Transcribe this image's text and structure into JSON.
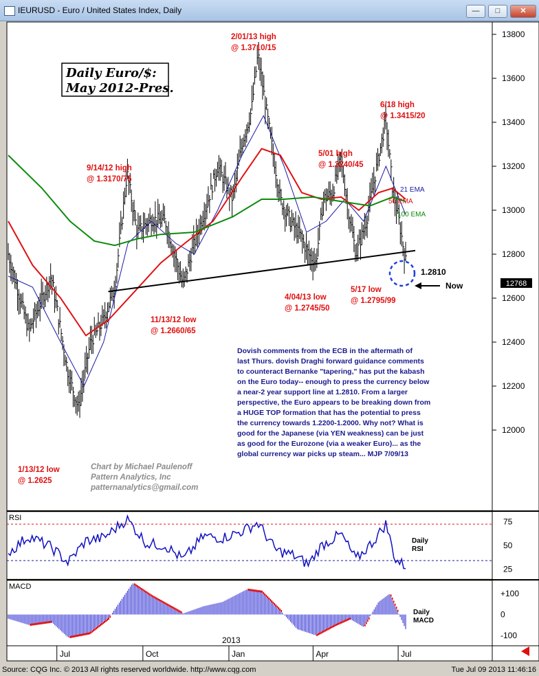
{
  "window": {
    "title": "IEURUSD - Euro / United States Index, Daily",
    "buttons": {
      "minimize": "—",
      "maximize": "□",
      "close": "✕"
    }
  },
  "colors": {
    "background": "#ffffff",
    "price": "#000000",
    "ema21": "#1a1aa6",
    "ema50": "#e01010",
    "ema100": "#0c8a0c",
    "annotation": "#e01010",
    "commentary": "#1a1a8c",
    "support": "#000000",
    "circle": "#1f3fdd",
    "rsi": "#1010c0",
    "macd": "#2020d0"
  },
  "chart_data": {
    "type": "line",
    "title": "Daily Euro/$:",
    "subtitle": "May 2012-Pres.",
    "xlabel": "",
    "ylabel": "",
    "x_ticks": [
      "Jul",
      "Oct",
      "Jan",
      "Apr",
      "Jul"
    ],
    "year_label": "2013",
    "ylim": [
      11600,
      13900
    ],
    "y_ticks": [
      "13800",
      "13600",
      "13400",
      "13200",
      "13000",
      "12800",
      "12600",
      "12400",
      "12200",
      "12000"
    ],
    "last_price_tag": "12768",
    "grid": false,
    "series": [
      {
        "name": "Price",
        "x": [
          "2012-05-10",
          "2012-06-01",
          "2012-06-25",
          "2012-07-13",
          "2012-07-24",
          "2012-08-06",
          "2012-08-20",
          "2012-09-01",
          "2012-09-14",
          "2012-09-25",
          "2012-10-10",
          "2012-10-25",
          "2012-11-13",
          "2012-11-25",
          "2012-12-10",
          "2012-12-20",
          "2013-01-05",
          "2013-01-15",
          "2013-01-25",
          "2013-02-01",
          "2013-02-12",
          "2013-02-25",
          "2013-03-08",
          "2013-03-19",
          "2013-03-27",
          "2013-04-04",
          "2013-04-12",
          "2013-04-22",
          "2013-05-01",
          "2013-05-08",
          "2013-05-17",
          "2013-05-28",
          "2013-06-06",
          "2013-06-18",
          "2013-06-25",
          "2013-07-02",
          "2013-07-09"
        ],
        "values": [
          12800,
          12450,
          12700,
          12260,
          12100,
          12400,
          12500,
          12650,
          13170,
          12900,
          12960,
          12950,
          12660,
          12850,
          13050,
          13200,
          13050,
          13300,
          13450,
          13710,
          13400,
          13050,
          12950,
          12880,
          12800,
          12760,
          13050,
          13080,
          13240,
          13020,
          12800,
          12950,
          13150,
          13415,
          13100,
          12950,
          12768
        ]
      },
      {
        "name": "21 EMA",
        "x": [
          "2012-05-10",
          "2012-06-05",
          "2012-07-05",
          "2012-07-30",
          "2012-08-20",
          "2012-09-15",
          "2012-10-10",
          "2012-11-05",
          "2012-11-25",
          "2012-12-20",
          "2013-01-15",
          "2013-02-07",
          "2013-03-01",
          "2013-03-25",
          "2013-04-15",
          "2013-05-05",
          "2013-05-25",
          "2013-06-18",
          "2013-07-09"
        ],
        "values": [
          12700,
          12650,
          12400,
          12200,
          12400,
          12850,
          12950,
          12850,
          12800,
          13000,
          13250,
          13430,
          13200,
          12900,
          12950,
          13050,
          12950,
          13200,
          12980
        ]
      },
      {
        "name": "50 EMA",
        "x": [
          "2012-05-10",
          "2012-06-05",
          "2012-07-05",
          "2012-08-01",
          "2012-08-25",
          "2012-09-20",
          "2012-10-20",
          "2012-11-15",
          "2012-12-15",
          "2013-01-15",
          "2013-02-05",
          "2013-02-25",
          "2013-03-20",
          "2013-04-10",
          "2013-05-01",
          "2013-05-20",
          "2013-06-10",
          "2013-06-25",
          "2013-07-09"
        ],
        "values": [
          12950,
          12750,
          12600,
          12430,
          12500,
          12620,
          12760,
          12850,
          12950,
          13150,
          13280,
          13250,
          13080,
          13050,
          13060,
          13000,
          13080,
          13100,
          13050
        ]
      },
      {
        "name": "100 EMA",
        "x": [
          "2012-05-10",
          "2012-06-15",
          "2012-07-15",
          "2012-08-10",
          "2012-09-01",
          "2012-09-25",
          "2012-10-20",
          "2012-11-25",
          "2013-01-05",
          "2013-02-05",
          "2013-03-01",
          "2013-04-01",
          "2013-05-01",
          "2013-06-01",
          "2013-06-25",
          "2013-07-09"
        ],
        "values": [
          13250,
          13100,
          12950,
          12860,
          12840,
          12870,
          12890,
          12900,
          12970,
          13050,
          13050,
          13060,
          13040,
          13020,
          13060,
          13040
        ]
      }
    ],
    "ema_labels": [
      "21 EMA",
      "50 EMA",
      "100 EMA"
    ],
    "support": {
      "label": "1.2810",
      "from": {
        "x": "2012-08-25",
        "y": 12630
      },
      "to": {
        "x": "2013-07-09",
        "y": 12810
      }
    },
    "now_label": "Now",
    "annotations": [
      {
        "lines": [
          "2/01/13 high",
          "@ 1.3710/15"
        ]
      },
      {
        "lines": [
          "9/14/12 high",
          "@ 1.3170/75"
        ]
      },
      {
        "lines": [
          "5/01 high",
          "@ 1.3240/45"
        ]
      },
      {
        "lines": [
          "6/18 high",
          "@ 1.3415/20"
        ]
      },
      {
        "lines": [
          "11/13/12 low",
          "@ 1.2660/65"
        ]
      },
      {
        "lines": [
          "4/04/13 low",
          "@ 1.2745/50"
        ]
      },
      {
        "lines": [
          "5/17 low",
          "@ 1.2795/99"
        ]
      },
      {
        "lines": [
          "1/13/12 low",
          "@ 1.2625"
        ]
      }
    ],
    "commentary": [
      "Dovish comments from the ECB in the aftermath of",
      "last Thurs. dovish Draghi forward guidance comments",
      "to counteract Bernanke \"tapering,\" has put the kabash",
      "on the Euro today-- enough to press the currency below",
      "a near-2 year support line at 1.2810.  From a larger",
      "perspective, the Euro appears to be breaking down from",
      "a HUGE TOP formation that has the potential to press",
      "the currency towards 1.2200-1.2000.  Why not?  What is",
      "good for the Japanese (via YEN weakness) can be just",
      "as good for the Eurozone (via a weaker Euro)... as the",
      "global currency war picks up steam...   MJP  7/09/13"
    ],
    "credit": [
      "Chart by Michael Paulenoff",
      "Pattern Analytics, Inc",
      "patternanalytics@gmail.com"
    ],
    "rsi": {
      "panel_label": "RSI",
      "side_label": [
        "Daily",
        "RSI"
      ],
      "ticks": [
        "75",
        "50",
        "25"
      ],
      "ylim": [
        15,
        85
      ],
      "x": [
        "2012-05-10",
        "2012-06-01",
        "2012-06-25",
        "2012-07-13",
        "2012-08-01",
        "2012-08-20",
        "2012-09-14",
        "2012-10-05",
        "2012-10-25",
        "2012-11-13",
        "2012-12-05",
        "2012-12-25",
        "2013-01-15",
        "2013-02-01",
        "2013-02-20",
        "2013-03-10",
        "2013-03-27",
        "2013-04-10",
        "2013-05-01",
        "2013-05-17",
        "2013-06-05",
        "2013-06-18",
        "2013-06-28",
        "2013-07-09"
      ],
      "values": [
        42,
        60,
        48,
        32,
        55,
        58,
        78,
        52,
        50,
        35,
        60,
        58,
        65,
        74,
        45,
        40,
        30,
        50,
        62,
        35,
        55,
        73,
        35,
        28
      ]
    },
    "macd": {
      "panel_label": "MACD",
      "side_label": [
        "Daily",
        "MACD"
      ],
      "ticks": [
        "+100",
        "0",
        "-100"
      ],
      "ylim": [
        -150,
        160
      ],
      "x": [
        "2012-05-10",
        "2012-06-01",
        "2012-06-25",
        "2012-07-13",
        "2012-08-05",
        "2012-08-25",
        "2012-09-20",
        "2012-10-10",
        "2012-11-13",
        "2012-12-05",
        "2012-12-25",
        "2013-01-20",
        "2013-02-05",
        "2013-02-25",
        "2013-03-15",
        "2013-04-04",
        "2013-04-25",
        "2013-05-10",
        "2013-05-25",
        "2013-06-10",
        "2013-06-22",
        "2013-07-09"
      ],
      "values": [
        -20,
        -50,
        -35,
        -110,
        -90,
        -20,
        150,
        90,
        5,
        40,
        60,
        120,
        110,
        20,
        -70,
        -100,
        -50,
        -20,
        -60,
        60,
        100,
        -70
      ]
    }
  },
  "footer": {
    "source": "Source: CQG Inc. © 2013 All rights reserved worldwide. http://www.cqg.com",
    "timestamp": "Tue Jul 09 2013 11:46:16"
  }
}
